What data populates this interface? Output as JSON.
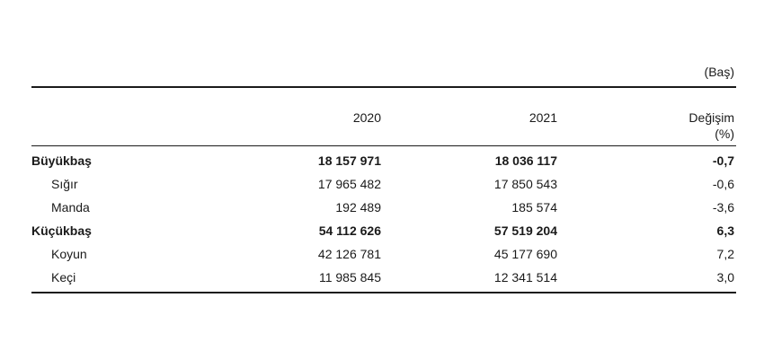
{
  "unit_label": "(Baş)",
  "headers": {
    "year1": "2020",
    "year2": "2021",
    "change_line1": "Değişim",
    "change_line2": "(%)"
  },
  "rows": [
    {
      "label": "Büyükbaş",
      "y2020": "18 157 971",
      "y2021": "18 036 117",
      "change": "-0,7"
    },
    {
      "label": "Sığır",
      "y2020": "17 965 482",
      "y2021": "17 850 543",
      "change": "-0,6"
    },
    {
      "label": "Manda",
      "y2020": "192 489",
      "y2021": "185 574",
      "change": "-3,6"
    },
    {
      "label": "Küçükbaş",
      "y2020": "54 112 626",
      "y2021": "57 519 204",
      "change": "6,3"
    },
    {
      "label": "Koyun",
      "y2020": "42 126 781",
      "y2021": "45 177 690",
      "change": "7,2"
    },
    {
      "label": "Keçi",
      "y2020": "11 985 845",
      "y2021": "12 341 514",
      "change": "3,0"
    }
  ]
}
